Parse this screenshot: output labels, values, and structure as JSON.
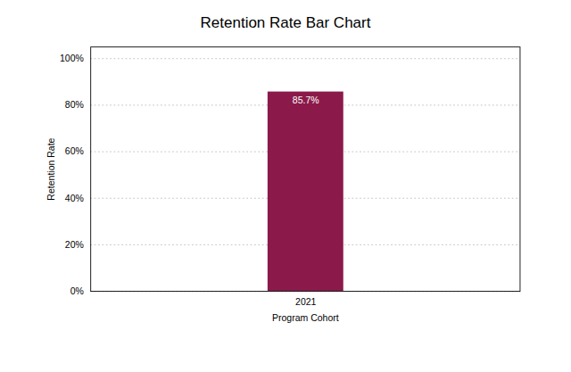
{
  "chart_data": {
    "type": "bar",
    "title": "Retention Rate Bar Chart",
    "xlabel": "Program Cohort",
    "ylabel": "Retention Rate",
    "categories": [
      "2021"
    ],
    "values": [
      0.857
    ],
    "value_labels": [
      "85.7%"
    ],
    "data_labels": true,
    "color": "#8B1A4A",
    "ylim": [
      0,
      1.05
    ],
    "yticks": [
      {
        "value": 0,
        "label": "0%"
      },
      {
        "value": 0.2,
        "label": "20%"
      },
      {
        "value": 0.4,
        "label": "40%"
      },
      {
        "value": 0.6,
        "label": "60%"
      },
      {
        "value": 0.8,
        "label": "80%"
      },
      {
        "value": 1.0,
        "label": "100%"
      }
    ],
    "grid": true
  }
}
